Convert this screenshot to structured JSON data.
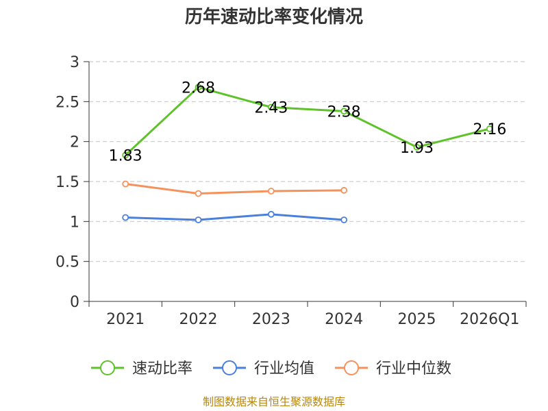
{
  "chart_data": {
    "type": "line",
    "title": "历年速动比率变化情况",
    "categories": [
      "2021",
      "2022",
      "2023",
      "2024",
      "2025",
      "2026Q1"
    ],
    "ylim": [
      0,
      3
    ],
    "yticks": [
      "0",
      "0.5",
      "1",
      "1.5",
      "2",
      "2.5",
      "3"
    ],
    "grid": true,
    "legend_position": "bottom",
    "series": [
      {
        "name": "速动比率",
        "color": "#5ec22a",
        "values": [
          1.83,
          2.68,
          2.43,
          2.38,
          1.93,
          2.16
        ],
        "labels": [
          "1.83",
          "2.68",
          "2.43",
          "2.38",
          "1.93",
          "2.16"
        ],
        "show_labels": true
      },
      {
        "name": "行业均值",
        "color": "#4a7fdc",
        "values": [
          1.05,
          1.02,
          1.09,
          1.02,
          null,
          null
        ],
        "show_labels": false
      },
      {
        "name": "行业中位数",
        "color": "#f5925c",
        "values": [
          1.47,
          1.35,
          1.38,
          1.39,
          null,
          null
        ],
        "show_labels": false
      }
    ]
  },
  "source": "制图数据来自恒生聚源数据库"
}
